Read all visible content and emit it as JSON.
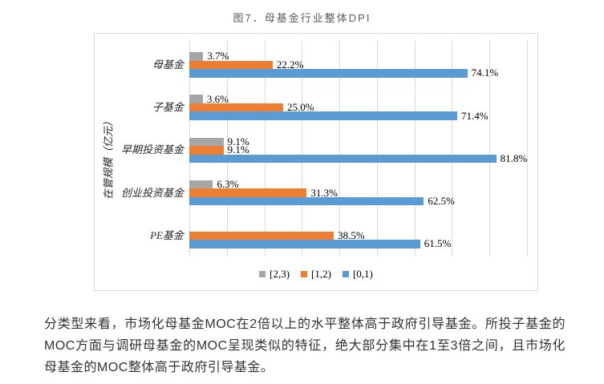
{
  "page": {
    "title": "图7．母基金行业整体DPI",
    "paragraph": "分类型来看，市场化母基金MOC在2倍以上的水平整体高于政府引导基金。所投子基金的MOC方面与调研母基金的MOC呈现类似的特征，绝大部分集中在1至3倍之间，且市场化母基金的MOC整体高于政府引导基金。"
  },
  "chart_data": {
    "type": "bar",
    "orientation": "horizontal",
    "title": "图7．母基金行业整体DPI",
    "ylabel": "在管规模（亿元）",
    "xlabel": "",
    "xlim": [
      0,
      90
    ],
    "gridline_step": 10,
    "grid": true,
    "legend_position": "bottom",
    "categories": [
      "母基金",
      "子基金",
      "早期投资基金",
      "创业投资基金",
      "PE基金"
    ],
    "series": [
      {
        "name": "[2,3)",
        "color": "#A6A6A6",
        "values": [
          3.7,
          3.6,
          9.1,
          6.3,
          null
        ],
        "labels": [
          "3.7%",
          "3.6%",
          "9.1%",
          "6.3%",
          ""
        ]
      },
      {
        "name": "[1,2)",
        "color": "#ED7D31",
        "values": [
          22.2,
          25.0,
          9.1,
          31.3,
          38.5
        ],
        "labels": [
          "22.2%",
          "25.0%",
          "9.1%",
          "31.3%",
          "38.5%"
        ]
      },
      {
        "name": "[0,1)",
        "color": "#5B9BD5",
        "values": [
          74.1,
          71.4,
          81.8,
          62.5,
          61.5
        ],
        "labels": [
          "74.1%",
          "71.4%",
          "81.8%",
          "62.5%",
          "61.5%"
        ]
      }
    ]
  }
}
